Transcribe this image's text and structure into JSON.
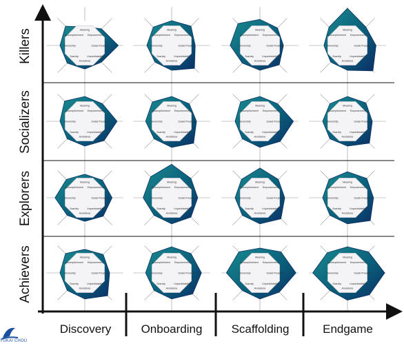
{
  "rows": [
    "Killers",
    "Socializers",
    "Explorers",
    "Achievers"
  ],
  "columns": [
    "Discovery",
    "Onboarding",
    "Scaffolding",
    "Endgame"
  ],
  "axis_labels": [
    "Meaning",
    "Empowerment",
    "Social Pressure",
    "Unpredictability",
    "Avoidance",
    "Scarcity",
    "Ownership",
    "Accomplishment"
  ],
  "logo": {
    "text": "YUKAI CHOU"
  },
  "colors": {
    "dark": "#0b2f66",
    "mid": "#0a5f7a",
    "light": "#1a8a8f",
    "axis": "#111111"
  },
  "profiles": [
    [
      [
        0.75,
        0.95,
        1.35,
        0.95,
        0.95,
        1.0,
        1.0,
        1.1
      ],
      [
        1.0,
        1.1,
        0.95,
        1.3,
        1.0,
        0.95,
        1.0,
        1.05
      ],
      [
        1.05,
        1.0,
        0.95,
        1.1,
        1.0,
        1.0,
        1.2,
        1.25
      ],
      [
        1.5,
        1.05,
        1.15,
        1.45,
        1.0,
        0.95,
        0.95,
        1.05
      ]
    ],
    [
      [
        1.0,
        1.0,
        1.3,
        1.1,
        1.0,
        1.0,
        1.0,
        1.15
      ],
      [
        1.0,
        1.0,
        1.0,
        1.25,
        1.05,
        1.0,
        1.05,
        1.1
      ],
      [
        1.0,
        1.0,
        1.35,
        1.15,
        1.05,
        1.0,
        1.0,
        1.1
      ],
      [
        1.0,
        1.05,
        1.0,
        1.25,
        1.0,
        1.0,
        1.0,
        1.0
      ]
    ],
    [
      [
        0.95,
        1.0,
        1.1,
        1.05,
        0.95,
        1.0,
        1.2,
        1.05
      ],
      [
        1.35,
        1.1,
        1.05,
        1.1,
        1.05,
        1.0,
        1.15,
        1.2
      ],
      [
        1.2,
        1.05,
        1.0,
        1.2,
        1.05,
        1.0,
        1.0,
        1.05
      ],
      [
        1.05,
        1.1,
        1.05,
        1.3,
        1.05,
        1.0,
        1.0,
        1.05
      ]
    ],
    [
      [
        0.95,
        1.05,
        1.0,
        1.3,
        1.05,
        1.0,
        1.0,
        1.1
      ],
      [
        1.05,
        1.1,
        1.2,
        1.2,
        1.05,
        1.0,
        1.05,
        1.1
      ],
      [
        1.0,
        1.2,
        1.45,
        1.1,
        1.05,
        1.0,
        1.35,
        1.2
      ],
      [
        1.05,
        1.2,
        1.5,
        1.25,
        1.1,
        1.0,
        1.4,
        1.15
      ]
    ]
  ]
}
